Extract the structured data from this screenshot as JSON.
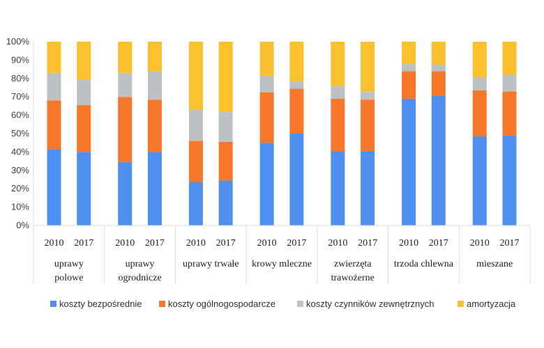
{
  "chart_data": {
    "type": "bar",
    "stacked": true,
    "normalized": true,
    "ylim": [
      0,
      100
    ],
    "yticks": [
      "0%",
      "10%",
      "20%",
      "30%",
      "40%",
      "50%",
      "60%",
      "70%",
      "80%",
      "90%",
      "100%"
    ],
    "legend_position": "bottom",
    "grid": false,
    "groups": [
      {
        "label_lines": [
          "uprawy",
          "polowe"
        ],
        "years": [
          "2010",
          "2017"
        ]
      },
      {
        "label_lines": [
          "uprawy",
          "ogrodnicze"
        ],
        "years": [
          "2010",
          "2017"
        ]
      },
      {
        "label_lines": [
          "uprawy trwałe"
        ],
        "years": [
          "2010",
          "2017"
        ]
      },
      {
        "label_lines": [
          "krowy mleczne"
        ],
        "years": [
          "2010",
          "2017"
        ]
      },
      {
        "label_lines": [
          "zwierzęta",
          "trawożerne"
        ],
        "years": [
          "2010",
          "2017"
        ]
      },
      {
        "label_lines": [
          "trzoda chlewna"
        ],
        "years": [
          "2010",
          "2017"
        ]
      },
      {
        "label_lines": [
          "mieszane"
        ],
        "years": [
          "2010",
          "2017"
        ]
      }
    ],
    "series": [
      {
        "name": "koszty bezpośrednie",
        "color": "#4f8ff0",
        "values": [
          41.5,
          40,
          34.5,
          40,
          23.5,
          24.5,
          45,
          50,
          40.5,
          40.5,
          69,
          70.5,
          48.5,
          49
        ]
      },
      {
        "name": "koszty ogólnogospodarcze",
        "color": "#f7782a",
        "values": [
          26.5,
          25.5,
          35.5,
          28.5,
          22.5,
          21,
          27.5,
          24.5,
          28.5,
          28,
          15,
          13.5,
          25,
          24
        ]
      },
      {
        "name": "koszty czynników zewnętrznych",
        "color": "#bcc2c3",
        "values": [
          15,
          14,
          13,
          15.5,
          17,
          16.5,
          9,
          4,
          7,
          4.5,
          4,
          3.5,
          7,
          9
        ]
      },
      {
        "name": "amortyzacja",
        "color": "#fbc02d",
        "values": [
          17,
          20.5,
          17,
          16,
          37,
          38,
          18.5,
          21.5,
          24,
          27,
          12,
          12.5,
          19.5,
          18
        ]
      }
    ]
  }
}
